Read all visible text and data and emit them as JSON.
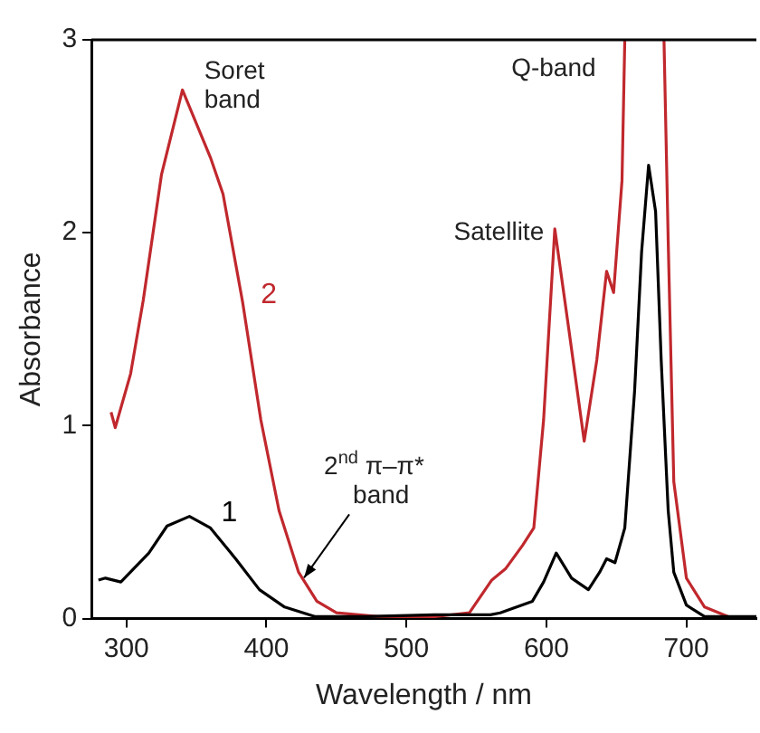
{
  "chart_data": {
    "type": "line",
    "xlabel": "Wavelength / nm",
    "ylabel": "Absorbance",
    "xlim": [
      275,
      750
    ],
    "ylim": [
      0,
      3
    ],
    "xticks": [
      300,
      400,
      500,
      600,
      700
    ],
    "yticks": [
      0,
      1,
      2,
      3
    ],
    "grid": false,
    "legend": false,
    "marker": "none",
    "line_style": "solid",
    "series": [
      {
        "name": "1",
        "color": "#000000",
        "x": [
          280,
          285,
          296,
          316,
          329,
          345,
          360,
          378,
          395,
          413,
          435,
          470,
          520,
          560,
          567,
          590,
          598,
          607,
          618,
          630,
          638,
          643,
          649,
          656,
          663,
          668,
          673,
          678,
          682,
          687,
          691,
          700,
          713,
          750
        ],
        "values": [
          0.2,
          0.21,
          0.19,
          0.34,
          0.48,
          0.53,
          0.47,
          0.31,
          0.15,
          0.06,
          0.01,
          0.01,
          0.02,
          0.02,
          0.03,
          0.09,
          0.19,
          0.34,
          0.21,
          0.15,
          0.24,
          0.31,
          0.29,
          0.47,
          1.18,
          1.9,
          2.35,
          2.11,
          1.34,
          0.56,
          0.24,
          0.07,
          0.01,
          0.01
        ]
      },
      {
        "name": "2",
        "color": "#c0282d",
        "x": [
          289,
          292,
          303,
          312,
          325,
          340,
          360,
          369,
          383,
          396,
          409,
          423,
          436,
          450,
          480,
          520,
          545,
          561,
          571,
          583,
          591,
          598,
          606,
          616,
          627,
          636,
          643,
          648,
          654,
          656,
          670,
          684,
          687,
          691,
          700,
          713,
          730
        ],
        "values": [
          1.07,
          0.99,
          1.27,
          1.65,
          2.3,
          2.74,
          2.39,
          2.2,
          1.64,
          1.03,
          0.56,
          0.24,
          0.09,
          0.03,
          0.01,
          0.01,
          0.03,
          0.2,
          0.26,
          0.38,
          0.47,
          1.03,
          2.02,
          1.5,
          0.92,
          1.34,
          1.8,
          1.69,
          2.27,
          3.0,
          null,
          3.0,
          1.96,
          0.71,
          0.21,
          0.06,
          0.01
        ]
      }
    ],
    "annotations": [
      {
        "text": "Soret band",
        "x": 340,
        "y": 2.74
      },
      {
        "text": "Satellite",
        "x": 606,
        "y": 2.02
      },
      {
        "text": "Q-band",
        "x": 656,
        "y": 3.0
      },
      {
        "text": "2$^{nd}$ π–π* band",
        "x": 423,
        "y": 0.24
      }
    ]
  }
}
